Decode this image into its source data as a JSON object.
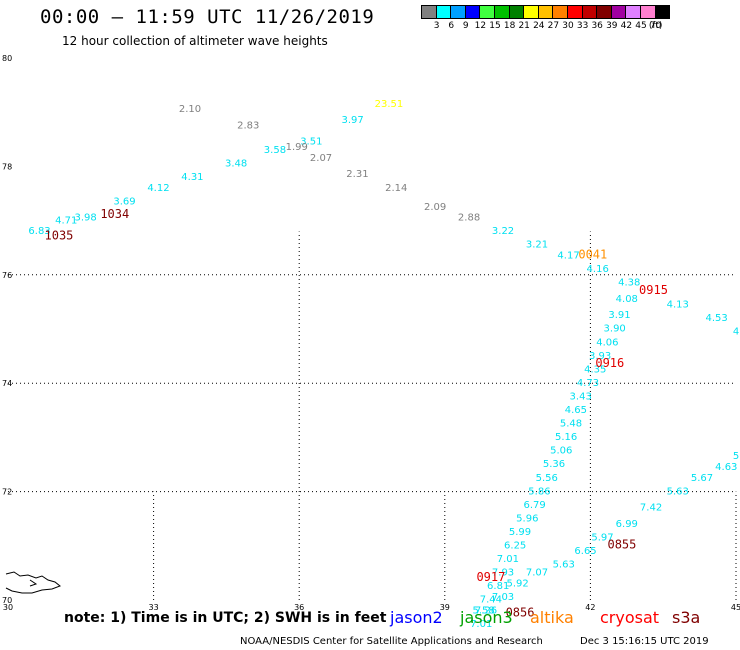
{
  "title": "00:00 — 11:59 UTC 11/26/2019",
  "subtitle": "12 hour collection of altimeter wave heights",
  "legend": {
    "unit": "(ft)",
    "bins": [
      {
        "label": "3",
        "color": "#808080"
      },
      {
        "label": "6",
        "color": "#00ffff"
      },
      {
        "label": "9",
        "color": "#00a0ff"
      },
      {
        "label": "12",
        "color": "#0000ff"
      },
      {
        "label": "15",
        "color": "#40ff40"
      },
      {
        "label": "18",
        "color": "#00c000"
      },
      {
        "label": "21",
        "color": "#008000"
      },
      {
        "label": "24",
        "color": "#ffff00"
      },
      {
        "label": "27",
        "color": "#ffc000"
      },
      {
        "label": "30",
        "color": "#ff8000"
      },
      {
        "label": "33",
        "color": "#ff0000"
      },
      {
        "label": "36",
        "color": "#c00000"
      },
      {
        "label": "39",
        "color": "#800000"
      },
      {
        "label": "42",
        "color": "#a000a0"
      },
      {
        "label": "45",
        "color": "#e080ff"
      },
      {
        "label": "70",
        "color": "#ff80d0"
      },
      {
        "label": "",
        "color": "#000000"
      }
    ]
  },
  "note": "note: 1) Time is in UTC; 2) SWH is in feet",
  "satellites": [
    {
      "name": "jason2",
      "color": "#0000ff"
    },
    {
      "name": "jason3",
      "color": "#00a000"
    },
    {
      "name": "altika",
      "color": "#ff8000"
    },
    {
      "name": "cryosat",
      "color": "#ff0000"
    },
    {
      "name": "s3a",
      "color": "#800000"
    }
  ],
  "footer": {
    "credit": "NOAA/NESDIS Center for Satellite Applications and Research",
    "timestamp": "Dec  3 15:16:15 UTC 2019"
  },
  "chart_data": {
    "type": "scatter",
    "xlim": [
      30,
      45
    ],
    "ylim": [
      70,
      80
    ],
    "x_ticks": [
      "30",
      "33",
      "36",
      "39",
      "42",
      "45"
    ],
    "y_ticks": [
      "70",
      "72",
      "74",
      "76",
      "78",
      "80"
    ],
    "gridlines": "dotted",
    "colors": {
      "gray": "#808080",
      "cyan": "#00e0f0",
      "yellow": "#ffff00",
      "orange": "#ff9000",
      "red": "#e00000",
      "maroon": "#800000"
    },
    "wave_heights": [
      {
        "lon": 30.65,
        "lat": 76.75,
        "label": "6.83",
        "color": "cyan"
      },
      {
        "lon": 31.2,
        "lat": 76.95,
        "label": "4.71",
        "color": "cyan"
      },
      {
        "lon": 31.6,
        "lat": 77.0,
        "label": "3.98",
        "color": "cyan"
      },
      {
        "lon": 32.4,
        "lat": 77.3,
        "label": "3.69",
        "color": "cyan"
      },
      {
        "lon": 33.1,
        "lat": 77.55,
        "label": "4.12",
        "color": "cyan"
      },
      {
        "lon": 33.8,
        "lat": 77.75,
        "label": "4.31",
        "color": "cyan"
      },
      {
        "lon": 34.7,
        "lat": 78.0,
        "label": "3.48",
        "color": "cyan"
      },
      {
        "lon": 35.5,
        "lat": 78.25,
        "label": "3.58",
        "color": "cyan"
      },
      {
        "lon": 36.25,
        "lat": 78.4,
        "label": "3.51",
        "color": "cyan"
      },
      {
        "lon": 37.1,
        "lat": 78.8,
        "label": "3.97",
        "color": "cyan"
      },
      {
        "lon": 33.75,
        "lat": 79.0,
        "label": "2.10",
        "color": "gray"
      },
      {
        "lon": 34.95,
        "lat": 78.7,
        "label": "2.83",
        "color": "gray"
      },
      {
        "lon": 35.95,
        "lat": 78.3,
        "label": "1.99",
        "color": "gray"
      },
      {
        "lon": 36.45,
        "lat": 78.1,
        "label": "2.07",
        "color": "gray"
      },
      {
        "lon": 37.2,
        "lat": 77.8,
        "label": "2.31",
        "color": "gray"
      },
      {
        "lon": 38.0,
        "lat": 77.55,
        "label": "2.14",
        "color": "gray"
      },
      {
        "lon": 38.8,
        "lat": 77.2,
        "label": "2.09",
        "color": "gray"
      },
      {
        "lon": 39.5,
        "lat": 77.0,
        "label": "2.88",
        "color": "gray"
      },
      {
        "lon": 37.85,
        "lat": 79.1,
        "label": "23.51",
        "color": "yellow"
      },
      {
        "lon": 40.2,
        "lat": 76.75,
        "label": "3.22",
        "color": "cyan"
      },
      {
        "lon": 40.9,
        "lat": 76.5,
        "label": "3.21",
        "color": "cyan"
      },
      {
        "lon": 41.55,
        "lat": 76.3,
        "label": "4.17",
        "color": "cyan"
      },
      {
        "lon": 42.15,
        "lat": 76.05,
        "label": "4.16",
        "color": "cyan"
      },
      {
        "lon": 42.8,
        "lat": 75.8,
        "label": "4.38",
        "color": "cyan"
      },
      {
        "lon": 42.75,
        "lat": 75.5,
        "label": "4.08",
        "color": "cyan"
      },
      {
        "lon": 42.6,
        "lat": 75.2,
        "label": "3.91",
        "color": "cyan"
      },
      {
        "lon": 42.5,
        "lat": 74.95,
        "label": "3.90",
        "color": "cyan"
      },
      {
        "lon": 42.35,
        "lat": 74.7,
        "label": "4.06",
        "color": "cyan"
      },
      {
        "lon": 42.2,
        "lat": 74.45,
        "label": "3.93",
        "color": "cyan"
      },
      {
        "lon": 42.1,
        "lat": 74.2,
        "label": "4.35",
        "color": "cyan"
      },
      {
        "lon": 41.95,
        "lat": 73.95,
        "label": "4.73",
        "color": "cyan"
      },
      {
        "lon": 41.8,
        "lat": 73.7,
        "label": "3.43",
        "color": "cyan"
      },
      {
        "lon": 41.7,
        "lat": 73.45,
        "label": "4.65",
        "color": "cyan"
      },
      {
        "lon": 41.6,
        "lat": 73.2,
        "label": "5.48",
        "color": "cyan"
      },
      {
        "lon": 41.5,
        "lat": 72.95,
        "label": "5.16",
        "color": "cyan"
      },
      {
        "lon": 41.4,
        "lat": 72.7,
        "label": "5.06",
        "color": "cyan"
      },
      {
        "lon": 41.25,
        "lat": 72.45,
        "label": "5.36",
        "color": "cyan"
      },
      {
        "lon": 41.1,
        "lat": 72.2,
        "label": "5.56",
        "color": "cyan"
      },
      {
        "lon": 40.95,
        "lat": 71.95,
        "label": "5.86",
        "color": "cyan"
      },
      {
        "lon": 40.85,
        "lat": 71.7,
        "label": "6.79",
        "color": "cyan"
      },
      {
        "lon": 40.7,
        "lat": 71.45,
        "label": "5.96",
        "color": "cyan"
      },
      {
        "lon": 40.55,
        "lat": 71.2,
        "label": "5.99",
        "color": "cyan"
      },
      {
        "lon": 40.45,
        "lat": 70.95,
        "label": "6.25",
        "color": "cyan"
      },
      {
        "lon": 40.3,
        "lat": 70.7,
        "label": "7.01",
        "color": "cyan"
      },
      {
        "lon": 40.2,
        "lat": 70.45,
        "label": "7.93",
        "color": "cyan"
      },
      {
        "lon": 40.1,
        "lat": 70.2,
        "label": "6.81",
        "color": "cyan"
      },
      {
        "lon": 39.95,
        "lat": 69.95,
        "label": "7.44",
        "color": "cyan"
      },
      {
        "lon": 39.85,
        "lat": 69.75,
        "label": "7.26",
        "color": "cyan"
      },
      {
        "lon": 39.75,
        "lat": 69.5,
        "label": "7.01",
        "color": "cyan"
      },
      {
        "lon": 43.8,
        "lat": 75.4,
        "label": "4.13",
        "color": "cyan"
      },
      {
        "lon": 44.6,
        "lat": 75.15,
        "label": "4.53",
        "color": "cyan"
      },
      {
        "lon": 45.0,
        "lat": 74.9,
        "label": "4",
        "color": "cyan"
      },
      {
        "lon": 44.8,
        "lat": 72.4,
        "label": "4.63",
        "color": "cyan"
      },
      {
        "lon": 44.3,
        "lat": 72.2,
        "label": "5.67",
        "color": "cyan"
      },
      {
        "lon": 43.8,
        "lat": 71.95,
        "label": "5.63",
        "color": "cyan"
      },
      {
        "lon": 43.25,
        "lat": 71.65,
        "label": "7.42",
        "color": "cyan"
      },
      {
        "lon": 42.75,
        "lat": 71.35,
        "label": "6.99",
        "color": "cyan"
      },
      {
        "lon": 42.25,
        "lat": 71.1,
        "label": "5.97",
        "color": "cyan"
      },
      {
        "lon": 41.9,
        "lat": 70.85,
        "label": "6.65",
        "color": "cyan"
      },
      {
        "lon": 41.45,
        "lat": 70.6,
        "label": "5.63",
        "color": "cyan"
      },
      {
        "lon": 40.9,
        "lat": 70.45,
        "label": "7.07",
        "color": "cyan"
      },
      {
        "lon": 40.5,
        "lat": 70.25,
        "label": "5.92",
        "color": "cyan"
      },
      {
        "lon": 40.2,
        "lat": 70.0,
        "label": "7.03",
        "color": "cyan"
      },
      {
        "lon": 39.8,
        "lat": 69.75,
        "label": "5.58",
        "color": "cyan"
      },
      {
        "lon": 45.0,
        "lat": 72.6,
        "label": "5",
        "color": "cyan"
      }
    ],
    "pass_times": [
      {
        "lon": 31.05,
        "lat": 76.65,
        "label": "1035",
        "color": "maroon"
      },
      {
        "lon": 32.2,
        "lat": 77.05,
        "label": "1034",
        "color": "maroon"
      },
      {
        "lon": 42.05,
        "lat": 76.3,
        "label": "0041",
        "color": "orange"
      },
      {
        "lon": 43.3,
        "lat": 75.65,
        "label": "0915",
        "color": "red"
      },
      {
        "lon": 42.4,
        "lat": 74.3,
        "label": "0916",
        "color": "red"
      },
      {
        "lon": 42.65,
        "lat": 70.95,
        "label": "0855",
        "color": "maroon"
      },
      {
        "lon": 39.95,
        "lat": 70.35,
        "label": "0917",
        "color": "red"
      },
      {
        "lon": 40.55,
        "lat": 69.7,
        "label": "0856",
        "color": "maroon"
      }
    ]
  }
}
